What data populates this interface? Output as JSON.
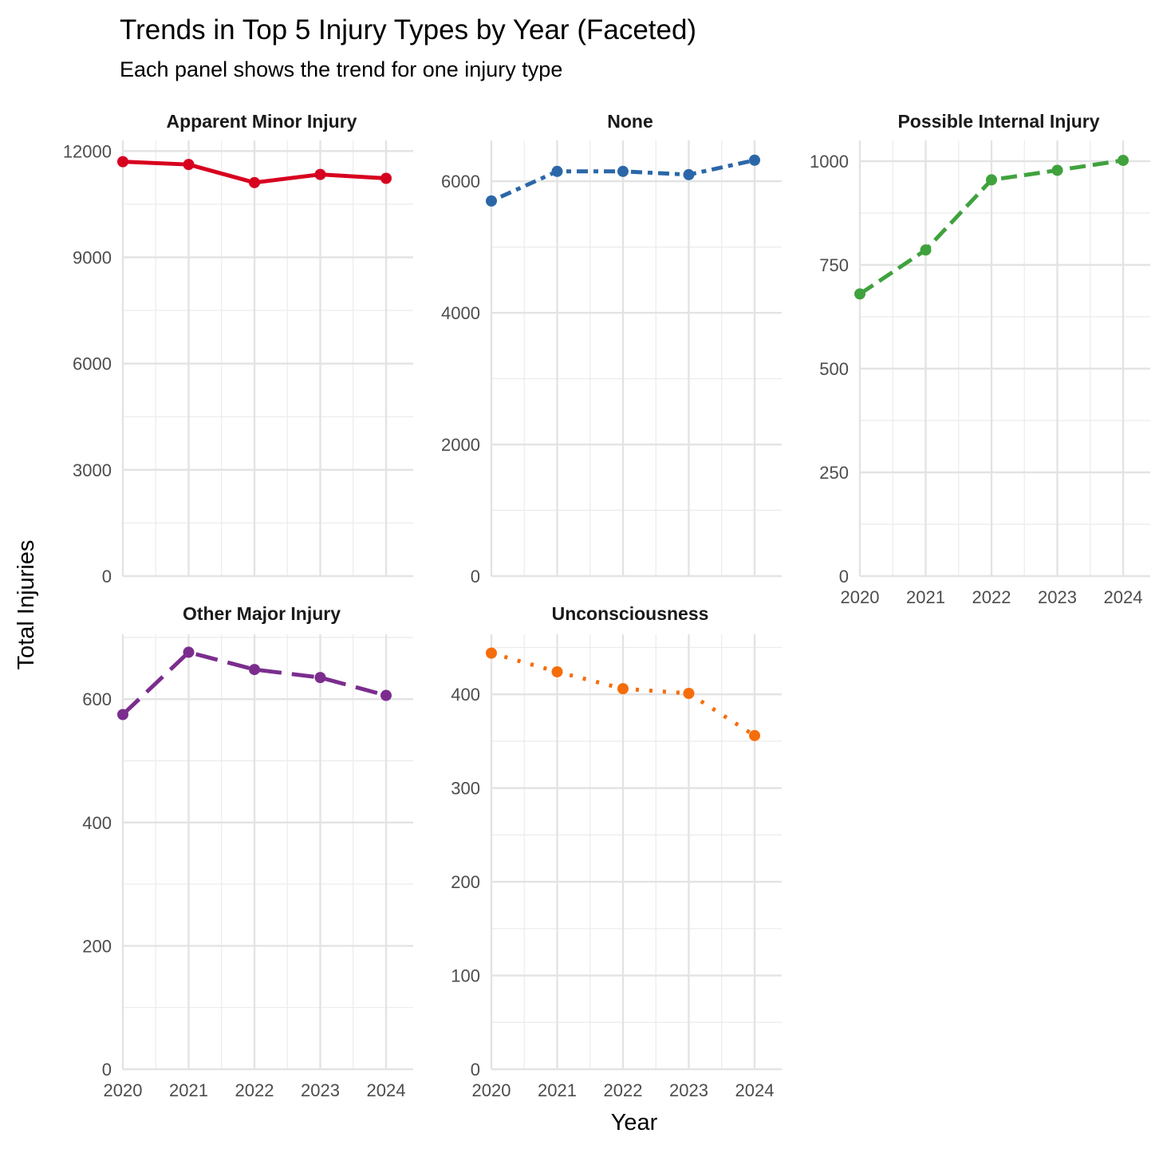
{
  "chart_data": {
    "type": "line",
    "title": "Trends in Top 5 Injury Types by Year (Faceted)",
    "subtitle": "Each panel shows the trend for one injury type",
    "xlabel": "Year",
    "ylabel": "Total Injuries",
    "x": [
      2020,
      2021,
      2022,
      2023,
      2024
    ],
    "x_tick_labels": [
      "2020",
      "2021",
      "2022",
      "2023",
      "2024"
    ],
    "grid": true,
    "legend": "none",
    "panels": [
      {
        "name": "Apparent Minor Injury",
        "color": "#d7001f",
        "linestyle": "solid",
        "values": [
          11700,
          11620,
          11110,
          11340,
          11230
        ],
        "ylim": [
          0,
          12300
        ],
        "y_ticks": [
          0,
          3000,
          6000,
          9000,
          12000
        ],
        "y_tick_labels": [
          "0",
          "3000",
          "6000",
          "9000",
          "12000"
        ],
        "minor_step": 1500
      },
      {
        "name": "None",
        "color": "#2b67a8",
        "linestyle": "dotted-dash",
        "values": [
          5700,
          6150,
          6150,
          6100,
          6320
        ],
        "ylim": [
          0,
          6620
        ],
        "y_ticks": [
          0,
          2000,
          4000,
          6000
        ],
        "y_tick_labels": [
          "0",
          "2000",
          "4000",
          "6000"
        ],
        "minor_step": 1000
      },
      {
        "name": "Possible Internal Injury",
        "color": "#3fa23d",
        "linestyle": "dashed",
        "values": [
          680,
          786,
          955,
          978,
          1002
        ],
        "ylim": [
          0,
          1050
        ],
        "y_ticks": [
          0,
          250,
          500,
          750,
          1000
        ],
        "y_tick_labels": [
          "0",
          "250",
          "500",
          "750",
          "1000"
        ],
        "minor_step": 125
      },
      {
        "name": "Other Major Injury",
        "color": "#7b2d8e",
        "linestyle": "long-dash",
        "values": [
          575,
          676,
          648,
          635,
          606
        ],
        "ylim": [
          0,
          705
        ],
        "y_ticks": [
          0,
          200,
          400,
          600
        ],
        "y_tick_labels": [
          "0",
          "200",
          "400",
          "600"
        ],
        "minor_step": 100
      },
      {
        "name": "Unconsciousness",
        "color": "#f56d0a",
        "linestyle": "dotted",
        "values": [
          444,
          424,
          406,
          401,
          356
        ],
        "ylim": [
          0,
          464
        ],
        "y_ticks": [
          0,
          100,
          200,
          300,
          400
        ],
        "y_tick_labels": [
          "0",
          "100",
          "200",
          "300",
          "400"
        ],
        "minor_step": 50
      }
    ]
  }
}
